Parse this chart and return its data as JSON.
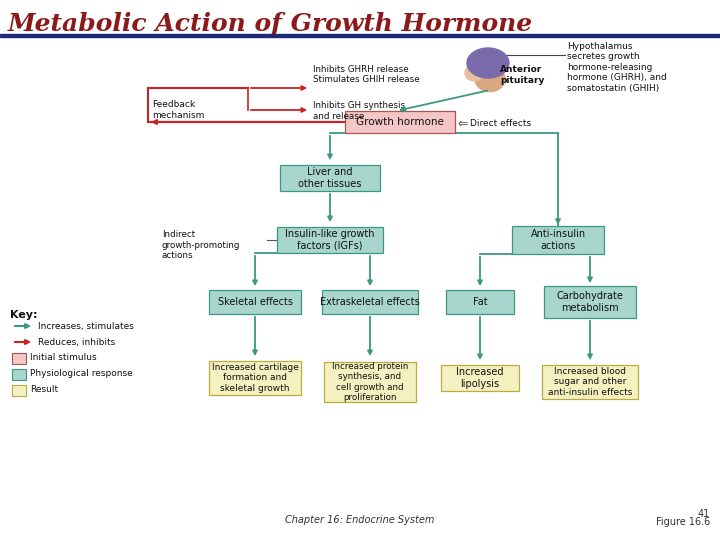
{
  "title": "Metabolic Action of Growth Hormone",
  "title_color": "#8B1A1A",
  "title_fontsize": 18,
  "bg_color": "#FFFFFF",
  "header_bar_color": "#1E2A78",
  "footer_text": "Chapter 16: Endocrine System",
  "figure_text": "41\nFigure 16.6",
  "box_colors": {
    "initial": "#F5C6C6",
    "physiological": "#A8D5CC",
    "result": "#F5F0C0"
  },
  "arrow_colors": {
    "stimulates": "#3B9980",
    "inhibits": "#CC2222"
  }
}
